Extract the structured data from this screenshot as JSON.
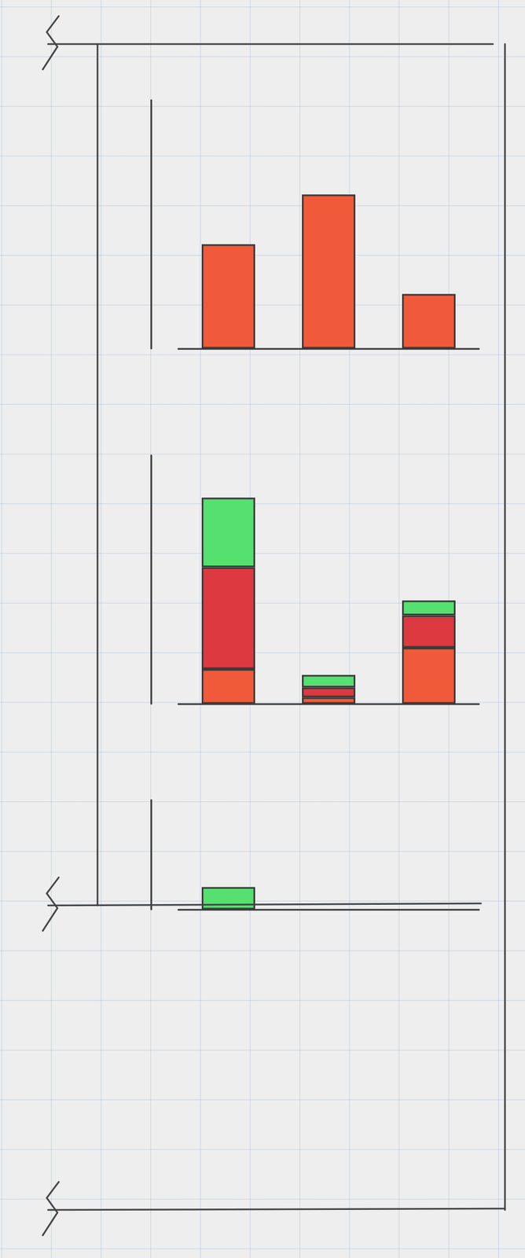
{
  "chart_data": [
    {
      "type": "bar",
      "categories": [
        null,
        null,
        null
      ],
      "series": [
        {
          "color": "#f05a3a",
          "values": [
            2.1,
            3.1,
            1.1
          ]
        }
      ],
      "ylim": [
        0,
        5
      ],
      "grid": false,
      "tick_labels": false
    },
    {
      "type": "bar",
      "stacked": true,
      "categories": [
        null,
        null,
        null
      ],
      "series": [
        {
          "color": "#f05a3a",
          "values": [
            0.7,
            0.13,
            1.13
          ]
        },
        {
          "color": "#dc3a40",
          "values": [
            2.05,
            0.2,
            0.65
          ]
        },
        {
          "color": "#55e070",
          "values": [
            1.4,
            0.25,
            0.3
          ]
        }
      ],
      "ylim": [
        0,
        5
      ],
      "grid": false,
      "tick_labels": false
    },
    {
      "type": "bar",
      "categories": [
        null,
        null,
        null
      ],
      "series": [
        {
          "color": "#55e070",
          "values": [
            0.45,
            null,
            null
          ]
        }
      ],
      "ylim": [
        0,
        2.2
      ],
      "grid": false,
      "tick_labels": false
    }
  ]
}
